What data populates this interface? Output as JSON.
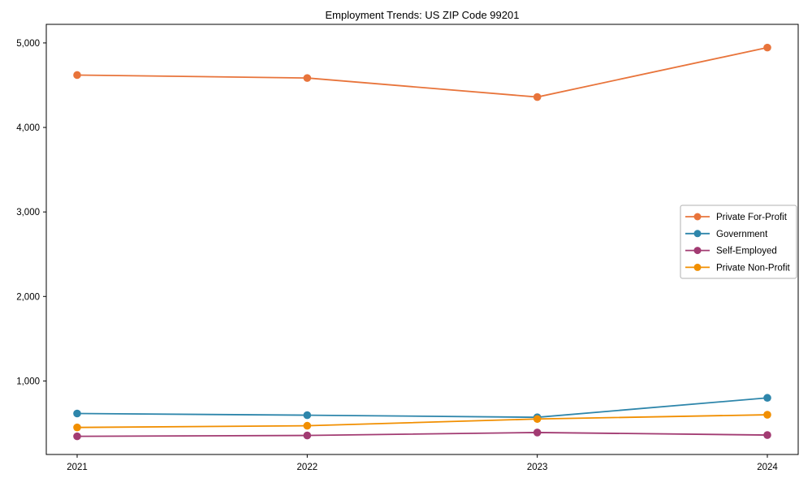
{
  "chart_data": {
    "type": "line",
    "title": "Employment Trends: US ZIP Code 99201",
    "x": [
      "2021",
      "2022",
      "2023",
      "2024"
    ],
    "xlabel": "",
    "ylabel": "",
    "ylim": [
      130,
      5220
    ],
    "yticks": [
      1000,
      2000,
      3000,
      4000,
      5000
    ],
    "ytick_labels": [
      "1,000",
      "2,000",
      "3,000",
      "4,000",
      "5,000"
    ],
    "grid": false,
    "legend": {
      "position": "center-right",
      "background": "#ffffff",
      "border_color": "#b0b0b0"
    },
    "series": [
      {
        "name": "Private For-Profit",
        "color": "#e8743b",
        "values": [
          4620,
          4585,
          4360,
          4945
        ]
      },
      {
        "name": "Government",
        "color": "#2e86ab",
        "values": [
          615,
          595,
          570,
          800
        ]
      },
      {
        "name": "Self-Employed",
        "color": "#a23b72",
        "values": [
          345,
          355,
          390,
          360
        ]
      },
      {
        "name": "Private Non-Profit",
        "color": "#f18f01",
        "values": [
          450,
          470,
          550,
          600
        ]
      }
    ]
  }
}
